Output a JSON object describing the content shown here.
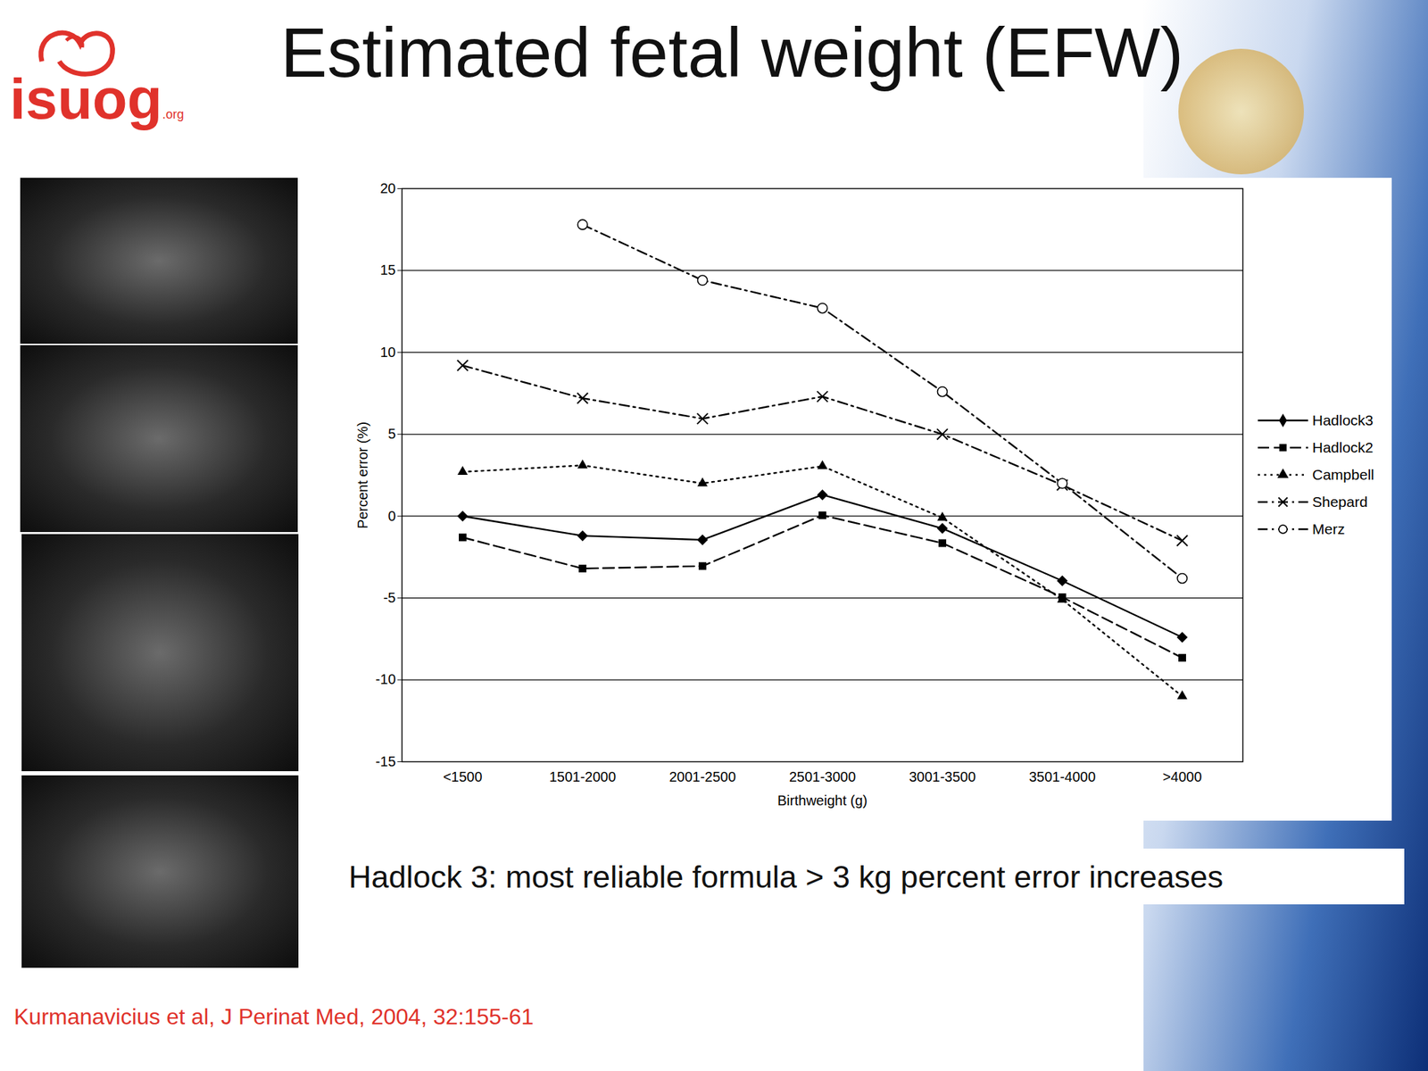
{
  "slide": {
    "logo": "isuog",
    "logo_suffix": ".org",
    "title": "Estimated fetal weight (EFW)",
    "caption": "Hadlock 3: most reliable formula > 3 kg percent error increases",
    "source": "Kurmanavicius et al, J Perinat Med, 2004, 32:155-61"
  },
  "chart_data": {
    "type": "line",
    "x_label": "Birthweight (g)",
    "y_label": "Percent error (%)",
    "categories": [
      "<1500",
      "1501-2000",
      "2001-2500",
      "2501-3000",
      "3001-3500",
      "3501-4000",
      ">4000"
    ],
    "series": [
      {
        "name": "Hadlock3",
        "color": "#000000",
        "marker": "diamond",
        "line_style": "solid",
        "values": [
          0,
          -1.2,
          -1.45,
          1.3,
          -0.75,
          -3.95,
          -7.4
        ]
      },
      {
        "name": "Hadlock2",
        "color": "#000000",
        "marker": "square",
        "line_style": "dashed",
        "values": [
          -1.3,
          -3.2,
          -3.05,
          0.05,
          -1.65,
          -4.95,
          -8.65
        ]
      },
      {
        "name": "Campbell",
        "color": "#000000",
        "marker": "triangle",
        "line_style": "dotted",
        "values": [
          2.7,
          3.1,
          2.0,
          3.05,
          -0.1,
          -5.1,
          -11.0
        ]
      },
      {
        "name": "Shepard",
        "color": "#000000",
        "marker": "x",
        "line_style": "dashdot",
        "values": [
          9.2,
          7.2,
          5.95,
          7.3,
          5.0,
          1.9,
          -1.5
        ]
      },
      {
        "name": "Merz",
        "color": "#000000",
        "marker": "open_circle",
        "line_style": "dashdot",
        "values": [
          null,
          17.8,
          14.4,
          12.7,
          7.6,
          2.0,
          -3.8
        ]
      }
    ],
    "ylim": [
      -15,
      20
    ],
    "yticks": [
      -15,
      -10,
      -5,
      0,
      5,
      10,
      15,
      20
    ],
    "grid": true,
    "legend": "right"
  }
}
